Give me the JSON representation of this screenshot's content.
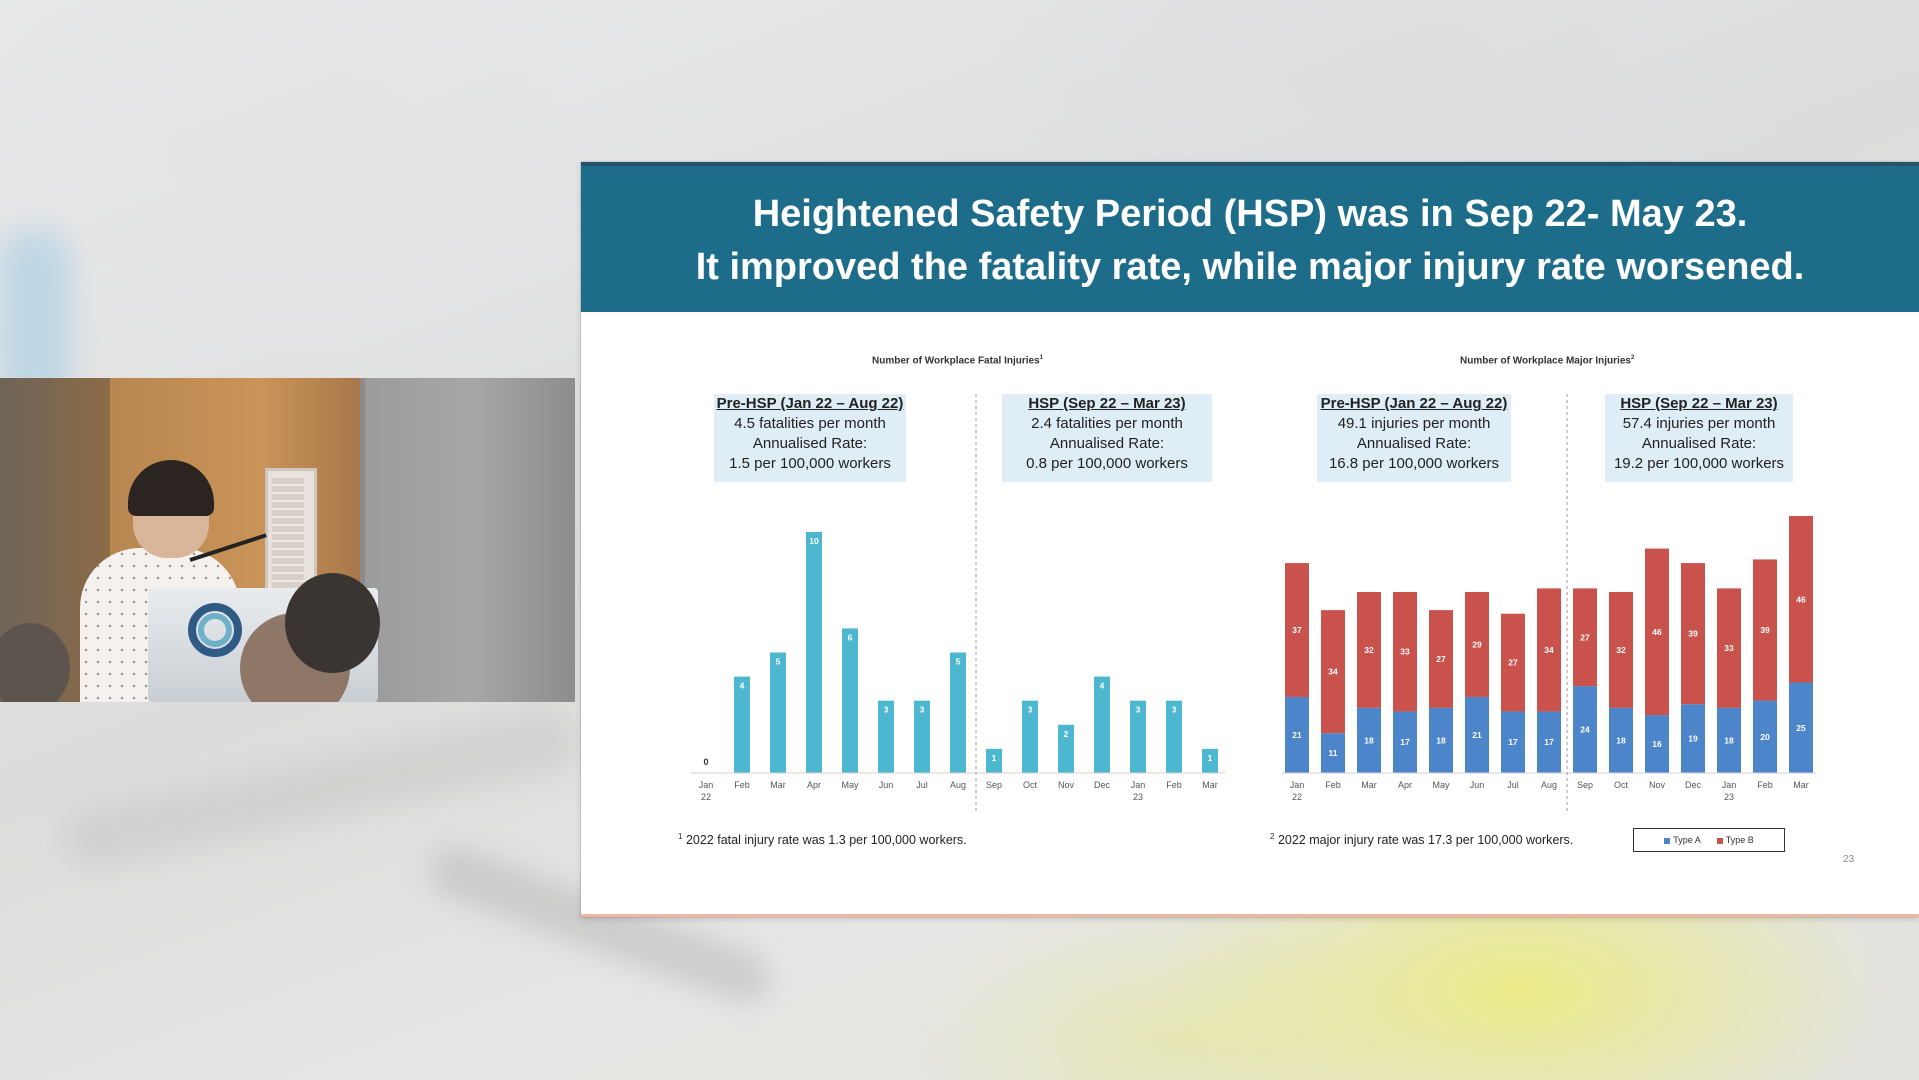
{
  "slide": {
    "title_line1": "Heightened Safety Period (HSP) was in Sep 22- May 23.",
    "title_line2": "It improved the fatality rate, while major injury rate worsened.",
    "page_number": "23",
    "colors": {
      "header": "#1d6d8a",
      "fatal_bar": "#4db7cf",
      "type_a": "#4c85c9",
      "type_b": "#c9524d",
      "box": "#deedf6"
    }
  },
  "fatal": {
    "title": "Number of Workplace Fatal Injuries",
    "title_sup": "1",
    "pre_box": {
      "header": "Pre-HSP (Jan 22 – Aug 22)",
      "line1": "4.5 fatalities per month",
      "line2": "Annualised Rate:",
      "line3": "1.5 per 100,000 workers"
    },
    "hsp_box": {
      "header": "HSP (Sep 22 – Mar 23)",
      "line1": "2.4 fatalities per month",
      "line2": "Annualised Rate:",
      "line3": "0.8 per 100,000 workers"
    },
    "footnote_sup": "1",
    "footnote": "2022 fatal injury rate was 1.3 per 100,000 workers."
  },
  "major": {
    "title": "Number of Workplace Major Injuries",
    "title_sup": "2",
    "pre_box": {
      "header": "Pre-HSP (Jan 22 – Aug 22)",
      "line1": "49.1 injuries per month",
      "line2": "Annualised Rate:",
      "line3": "16.8 per 100,000 workers"
    },
    "hsp_box": {
      "header": "HSP (Sep 22 – Mar 23)",
      "line1": "57.4 injuries per month",
      "line2": "Annualised Rate:",
      "line3": "19.2 per 100,000 workers"
    },
    "footnote_sup": "2",
    "footnote": "2022 major injury rate was 17.3 per 100,000 workers.",
    "legend": {
      "type_a": "Type A",
      "type_b": "Type B"
    }
  },
  "chart_data": [
    {
      "type": "bar",
      "title": "Number of Workplace Fatal Injuries",
      "categories": [
        "Jan 22",
        "Feb",
        "Mar",
        "Apr",
        "May",
        "Jun",
        "Jul",
        "Aug",
        "Sep",
        "Oct",
        "Nov",
        "Dec",
        "Jan 23",
        "Feb",
        "Mar"
      ],
      "values": [
        0,
        4,
        5,
        10,
        6,
        3,
        3,
        5,
        1,
        3,
        2,
        4,
        3,
        3,
        1
      ],
      "ylim": [
        0,
        10
      ],
      "grid": false,
      "divider_after": "Aug"
    },
    {
      "type": "bar",
      "stacked": true,
      "title": "Number of Workplace Major Injuries",
      "categories": [
        "Jan 22",
        "Feb",
        "Mar",
        "Apr",
        "May",
        "Jun",
        "Jul",
        "Aug",
        "Sep",
        "Oct",
        "Nov",
        "Dec",
        "Jan 23",
        "Feb",
        "Mar"
      ],
      "series": [
        {
          "name": "Type A",
          "values": [
            21,
            11,
            18,
            17,
            18,
            21,
            17,
            17,
            24,
            18,
            16,
            19,
            18,
            20,
            25
          ]
        },
        {
          "name": "Type B",
          "values": [
            37,
            34,
            32,
            33,
            27,
            29,
            27,
            34,
            27,
            32,
            46,
            39,
            33,
            39,
            46
          ]
        }
      ],
      "ylim": [
        0,
        71
      ],
      "legend": "bottom-right",
      "grid": false,
      "divider_after": "Aug"
    }
  ]
}
